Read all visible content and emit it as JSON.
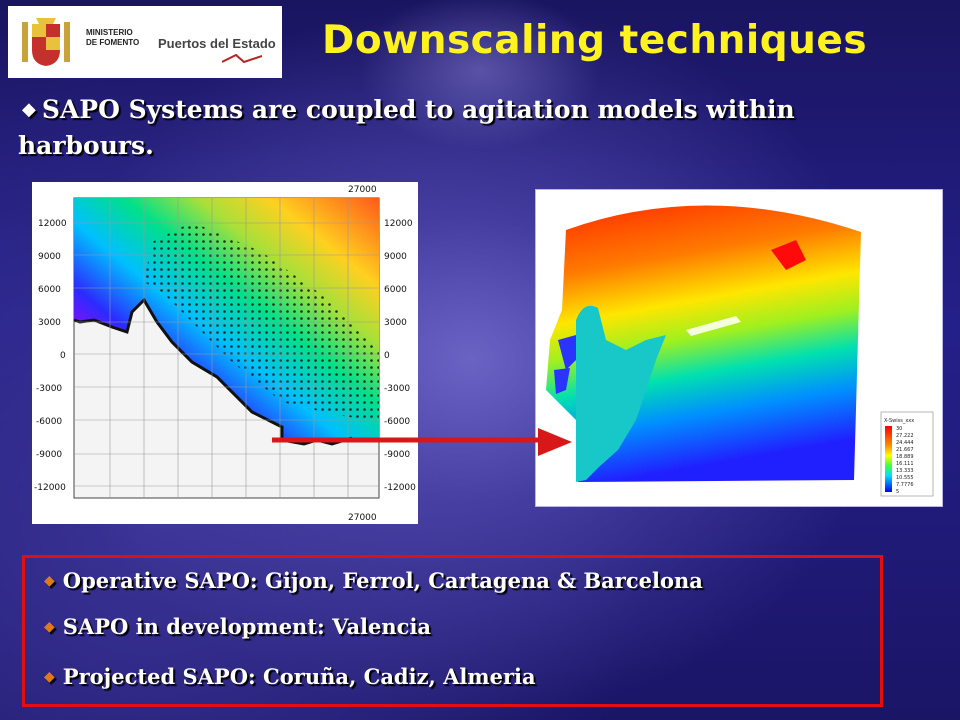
{
  "logo": {
    "ministry_line1": "MINISTERIO",
    "ministry_line2": "DE FOMENTO",
    "port_authority": "Puertos del Estado"
  },
  "slide": {
    "title": "Downscaling techniques",
    "bullet_icon": "diamond-bullet",
    "intro": "SAPO Systems are coupled to agitation models within harbours."
  },
  "left_map": {
    "top_tick": "27000",
    "bottom_tick": "27000",
    "y_ticks_left": [
      "12000",
      "9000",
      "6000",
      "3000",
      "0",
      "-3000",
      "-6000",
      "-9000",
      "-12000"
    ],
    "y_ticks_right": [
      "12000",
      "9000",
      "6000",
      "3000",
      "0",
      "-3000",
      "-6000",
      "-9000",
      "-12000"
    ]
  },
  "right_map": {
    "legend_title": "X-Swiss_xxx",
    "legend_values": [
      "30",
      "27.222",
      "24.444",
      "21.667",
      "18.889",
      "16.111",
      "13.333",
      "10.555",
      "7.7776",
      "5"
    ]
  },
  "bullets": [
    "Operative SAPO: Gijon, Ferrol, Cartagena & Barcelona",
    "SAPO in development: Valencia",
    "Projected SAPO: Coruña, Cadiz, Almeria"
  ],
  "colors": {
    "title": "#fff21e",
    "box_border": "#e01010",
    "arrow": "#d81818",
    "bullet": "#e07a18"
  }
}
